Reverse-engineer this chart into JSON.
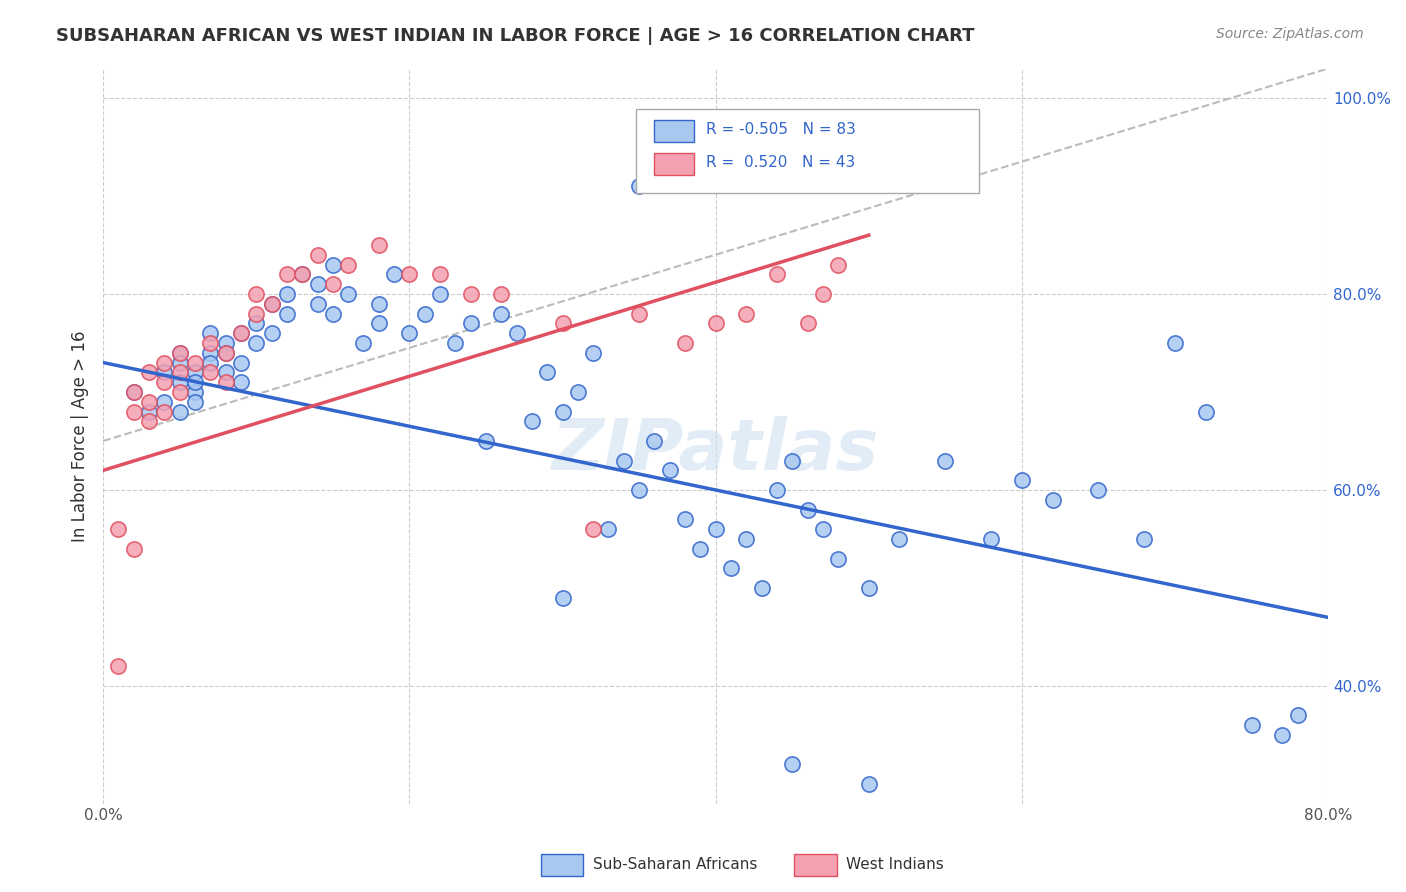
{
  "title": "SUBSAHARAN AFRICAN VS WEST INDIAN IN LABOR FORCE | AGE > 16 CORRELATION CHART",
  "source": "Source: ZipAtlas.com",
  "ylabel": "In Labor Force | Age > 16",
  "xlim": [
    0.0,
    0.8
  ],
  "ylim": [
    0.28,
    1.03
  ],
  "x_ticks": [
    0.0,
    0.2,
    0.4,
    0.6,
    0.8
  ],
  "x_tick_labels": [
    "0.0%",
    "",
    "",
    "",
    "80.0%"
  ],
  "y_ticks": [
    0.4,
    0.6,
    0.8,
    1.0
  ],
  "y_tick_labels": [
    "40.0%",
    "60.0%",
    "80.0%",
    "100.0%"
  ],
  "background_color": "#ffffff",
  "grid_color": "#cccccc",
  "blue_color": "#a8c8f0",
  "pink_color": "#f4a0b0",
  "blue_line_color": "#3366cc",
  "pink_line_color": "#e05060",
  "dashed_line_color": "#bbbbbb",
  "watermark_text": "ZIPatlas",
  "watermark_color": "#d0e0f0",
  "legend_r_blue": "-0.505",
  "legend_n_blue": "83",
  "legend_r_pink": "0.520",
  "legend_n_pink": "43",
  "legend_label_blue": "Sub-Saharan Africans",
  "legend_label_pink": "West Indians",
  "blue_scatter_x": [
    0.02,
    0.03,
    0.04,
    0.04,
    0.05,
    0.05,
    0.05,
    0.05,
    0.06,
    0.06,
    0.06,
    0.06,
    0.07,
    0.07,
    0.07,
    0.08,
    0.08,
    0.08,
    0.09,
    0.09,
    0.09,
    0.1,
    0.1,
    0.11,
    0.11,
    0.12,
    0.12,
    0.13,
    0.14,
    0.14,
    0.15,
    0.15,
    0.16,
    0.17,
    0.18,
    0.18,
    0.19,
    0.2,
    0.21,
    0.22,
    0.23,
    0.24,
    0.25,
    0.26,
    0.27,
    0.28,
    0.29,
    0.3,
    0.31,
    0.32,
    0.33,
    0.34,
    0.35,
    0.36,
    0.37,
    0.38,
    0.39,
    0.4,
    0.41,
    0.42,
    0.43,
    0.44,
    0.45,
    0.46,
    0.47,
    0.48,
    0.5,
    0.52,
    0.55,
    0.58,
    0.6,
    0.62,
    0.65,
    0.68,
    0.7,
    0.72,
    0.75,
    0.77,
    0.78,
    0.3,
    0.45,
    0.5,
    0.35
  ],
  "blue_scatter_y": [
    0.7,
    0.68,
    0.72,
    0.69,
    0.74,
    0.71,
    0.73,
    0.68,
    0.72,
    0.7,
    0.69,
    0.71,
    0.74,
    0.76,
    0.73,
    0.75,
    0.72,
    0.74,
    0.76,
    0.73,
    0.71,
    0.77,
    0.75,
    0.79,
    0.76,
    0.78,
    0.8,
    0.82,
    0.81,
    0.79,
    0.83,
    0.78,
    0.8,
    0.75,
    0.77,
    0.79,
    0.82,
    0.76,
    0.78,
    0.8,
    0.75,
    0.77,
    0.65,
    0.78,
    0.76,
    0.67,
    0.72,
    0.68,
    0.7,
    0.74,
    0.56,
    0.63,
    0.6,
    0.65,
    0.62,
    0.57,
    0.54,
    0.56,
    0.52,
    0.55,
    0.5,
    0.6,
    0.63,
    0.58,
    0.56,
    0.53,
    0.5,
    0.55,
    0.63,
    0.55,
    0.61,
    0.59,
    0.6,
    0.55,
    0.75,
    0.68,
    0.36,
    0.35,
    0.37,
    0.49,
    0.32,
    0.3,
    0.91
  ],
  "pink_scatter_x": [
    0.01,
    0.02,
    0.02,
    0.03,
    0.03,
    0.03,
    0.04,
    0.04,
    0.04,
    0.05,
    0.05,
    0.05,
    0.06,
    0.07,
    0.07,
    0.08,
    0.08,
    0.09,
    0.1,
    0.1,
    0.11,
    0.12,
    0.13,
    0.14,
    0.15,
    0.16,
    0.18,
    0.2,
    0.22,
    0.24,
    0.26,
    0.3,
    0.32,
    0.35,
    0.38,
    0.4,
    0.42,
    0.44,
    0.46,
    0.47,
    0.48,
    0.02,
    0.01
  ],
  "pink_scatter_y": [
    0.42,
    0.7,
    0.68,
    0.72,
    0.69,
    0.67,
    0.73,
    0.71,
    0.68,
    0.74,
    0.72,
    0.7,
    0.73,
    0.75,
    0.72,
    0.74,
    0.71,
    0.76,
    0.8,
    0.78,
    0.79,
    0.82,
    0.82,
    0.84,
    0.81,
    0.83,
    0.85,
    0.82,
    0.82,
    0.8,
    0.8,
    0.77,
    0.56,
    0.78,
    0.75,
    0.77,
    0.78,
    0.82,
    0.77,
    0.8,
    0.83,
    0.54,
    0.56
  ],
  "blue_trend_x": [
    0.0,
    0.8
  ],
  "blue_trend_y": [
    0.73,
    0.47
  ],
  "pink_trend_x": [
    0.0,
    0.5
  ],
  "pink_trend_y": [
    0.62,
    0.86
  ],
  "dashed_trend_x": [
    0.0,
    0.8
  ],
  "dashed_trend_y": [
    0.65,
    1.03
  ]
}
